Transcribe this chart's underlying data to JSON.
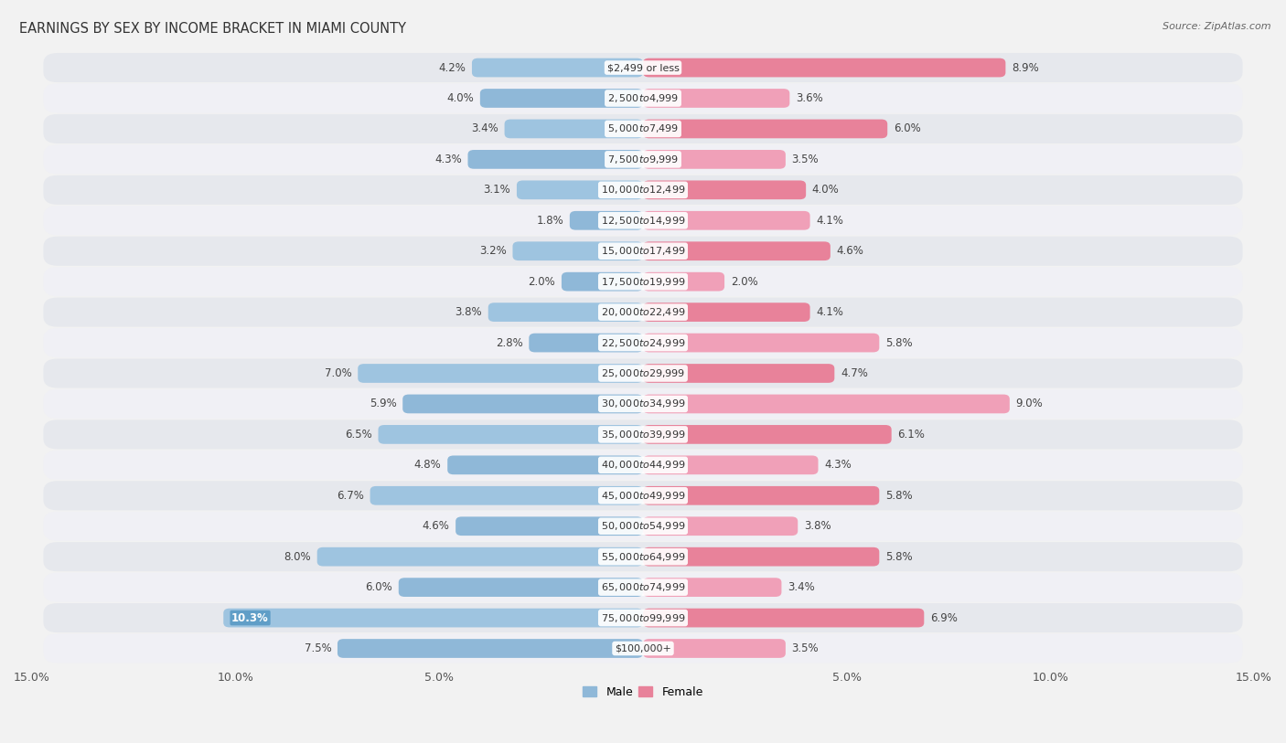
{
  "title": "EARNINGS BY SEX BY INCOME BRACKET IN MIAMI COUNTY",
  "source": "Source: ZipAtlas.com",
  "categories": [
    "$2,499 or less",
    "$2,500 to $4,999",
    "$5,000 to $7,499",
    "$7,500 to $9,999",
    "$10,000 to $12,499",
    "$12,500 to $14,999",
    "$15,000 to $17,499",
    "$17,500 to $19,999",
    "$20,000 to $22,499",
    "$22,500 to $24,999",
    "$25,000 to $29,999",
    "$30,000 to $34,999",
    "$35,000 to $39,999",
    "$40,000 to $44,999",
    "$45,000 to $49,999",
    "$50,000 to $54,999",
    "$55,000 to $64,999",
    "$65,000 to $74,999",
    "$75,000 to $99,999",
    "$100,000+"
  ],
  "male_values": [
    4.2,
    4.0,
    3.4,
    4.3,
    3.1,
    1.8,
    3.2,
    2.0,
    3.8,
    2.8,
    7.0,
    5.9,
    6.5,
    4.8,
    6.7,
    4.6,
    8.0,
    6.0,
    10.3,
    7.5
  ],
  "female_values": [
    8.9,
    3.6,
    6.0,
    3.5,
    4.0,
    4.1,
    4.6,
    2.0,
    4.1,
    5.8,
    4.7,
    9.0,
    6.1,
    4.3,
    5.8,
    3.8,
    5.8,
    3.4,
    6.9,
    3.5
  ],
  "male_color": "#8fb8d8",
  "female_color": "#e8829a",
  "female_color_alt": "#f0a0b8",
  "highlight_male_index": 18,
  "xlim": 15.0,
  "bar_height": 0.62,
  "bg_color": "#f2f2f2",
  "row_even_color": "#e6e8ed",
  "row_odd_color": "#f0f0f5",
  "title_fontsize": 10.5,
  "label_fontsize": 8.5,
  "cat_fontsize": 8.0,
  "tick_fontsize": 9,
  "source_fontsize": 8
}
